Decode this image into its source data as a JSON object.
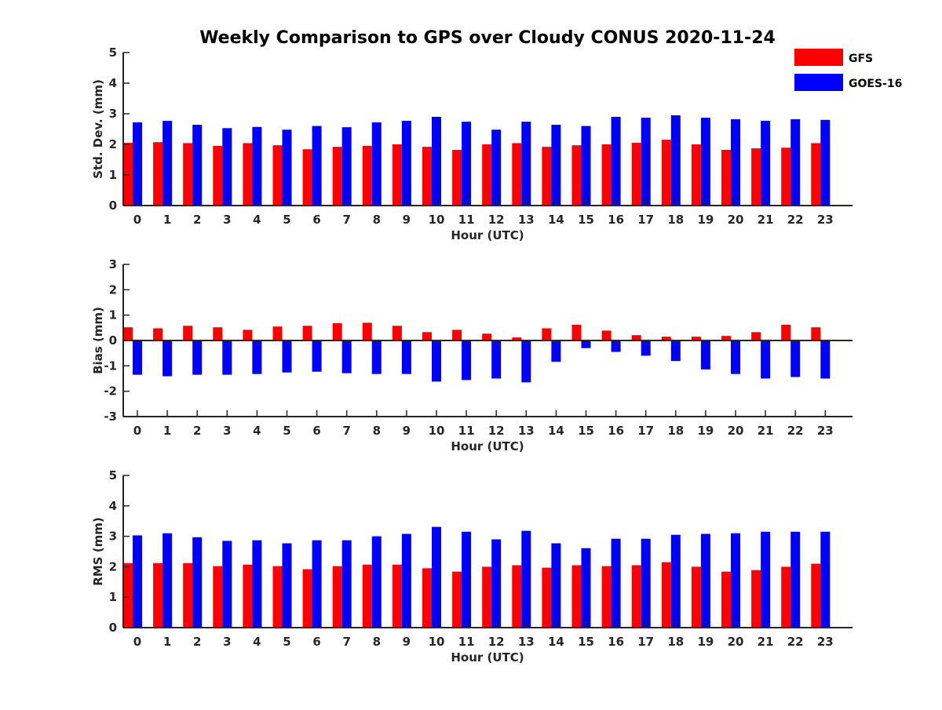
{
  "figure": {
    "title": "Weekly Comparison to GPS over Cloudy CONUS 2020-11-24"
  },
  "legend": {
    "items": [
      {
        "label": "GFS",
        "color": "#ff0000"
      },
      {
        "label": "GOES-16",
        "color": "#0000ff"
      }
    ]
  },
  "chart_data": [
    {
      "type": "bar",
      "categories": [
        "0",
        "1",
        "2",
        "3",
        "4",
        "5",
        "6",
        "7",
        "8",
        "9",
        "10",
        "11",
        "12",
        "13",
        "14",
        "15",
        "16",
        "17",
        "18",
        "19",
        "20",
        "21",
        "22",
        "23"
      ],
      "xlabel": "Hour (UTC)",
      "ylabel": "Std. Dev. (mm)",
      "ylim": [
        0,
        5
      ],
      "yticks": [
        "0",
        "1",
        "2",
        "3",
        "4",
        "5"
      ],
      "series": [
        {
          "name": "GFS",
          "color": "#ff0000",
          "values": [
            2.05,
            2.07,
            2.04,
            1.95,
            2.04,
            1.97,
            1.84,
            1.92,
            1.95,
            2.0,
            1.92,
            1.82,
            2.0,
            2.04,
            1.92,
            1.97,
            2.0,
            2.05,
            2.15,
            2.0,
            1.82,
            1.87,
            1.89,
            2.04
          ]
        },
        {
          "name": "GOES-16",
          "color": "#0000ff",
          "values": [
            2.72,
            2.77,
            2.64,
            2.53,
            2.57,
            2.48,
            2.6,
            2.56,
            2.72,
            2.77,
            2.9,
            2.74,
            2.48,
            2.74,
            2.64,
            2.6,
            2.9,
            2.87,
            2.95,
            2.87,
            2.82,
            2.77,
            2.82,
            2.8
          ]
        }
      ]
    },
    {
      "type": "bar",
      "categories": [
        "0",
        "1",
        "2",
        "3",
        "4",
        "5",
        "6",
        "7",
        "8",
        "9",
        "10",
        "11",
        "12",
        "13",
        "14",
        "15",
        "16",
        "17",
        "18",
        "19",
        "20",
        "21",
        "22",
        "23"
      ],
      "xlabel": "Hour (UTC)",
      "ylabel": "Bias (mm)",
      "ylim": [
        -3,
        3
      ],
      "yticks": [
        "-3",
        "-2",
        "-1",
        "0",
        "1",
        "2",
        "3"
      ],
      "series": [
        {
          "name": "GFS",
          "color": "#ff0000",
          "values": [
            0.52,
            0.48,
            0.58,
            0.52,
            0.42,
            0.55,
            0.58,
            0.68,
            0.7,
            0.58,
            0.33,
            0.42,
            0.27,
            0.12,
            0.48,
            0.62,
            0.39,
            0.21,
            0.15,
            0.15,
            0.18,
            0.33,
            0.62,
            0.52
          ]
        },
        {
          "name": "GOES-16",
          "color": "#0000ff",
          "values": [
            -1.35,
            -1.41,
            -1.35,
            -1.35,
            -1.32,
            -1.26,
            -1.23,
            -1.29,
            -1.32,
            -1.32,
            -1.62,
            -1.56,
            -1.5,
            -1.65,
            -0.84,
            -0.3,
            -0.45,
            -0.6,
            -0.81,
            -1.14,
            -1.32,
            -1.5,
            -1.44,
            -1.5
          ]
        }
      ]
    },
    {
      "type": "bar",
      "categories": [
        "0",
        "1",
        "2",
        "3",
        "4",
        "5",
        "6",
        "7",
        "8",
        "9",
        "10",
        "11",
        "12",
        "13",
        "14",
        "15",
        "16",
        "17",
        "18",
        "19",
        "20",
        "21",
        "22",
        "23"
      ],
      "xlabel": "Hour (UTC)",
      "ylabel": "RMS (mm)",
      "ylim": [
        0,
        5
      ],
      "yticks": [
        "0",
        "1",
        "2",
        "3",
        "4",
        "5"
      ],
      "series": [
        {
          "name": "GFS",
          "color": "#ff0000",
          "values": [
            2.12,
            2.12,
            2.12,
            2.02,
            2.07,
            2.02,
            1.92,
            2.02,
            2.07,
            2.07,
            1.95,
            1.84,
            2.0,
            2.05,
            1.97,
            2.05,
            2.02,
            2.05,
            2.15,
            2.0,
            1.84,
            1.89,
            2.0,
            2.1
          ]
        },
        {
          "name": "GOES-16",
          "color": "#0000ff",
          "values": [
            3.03,
            3.1,
            2.97,
            2.85,
            2.87,
            2.77,
            2.87,
            2.87,
            3.0,
            3.08,
            3.31,
            3.15,
            2.9,
            3.18,
            2.77,
            2.61,
            2.92,
            2.92,
            3.05,
            3.08,
            3.1,
            3.15,
            3.15,
            3.15
          ]
        }
      ]
    }
  ]
}
